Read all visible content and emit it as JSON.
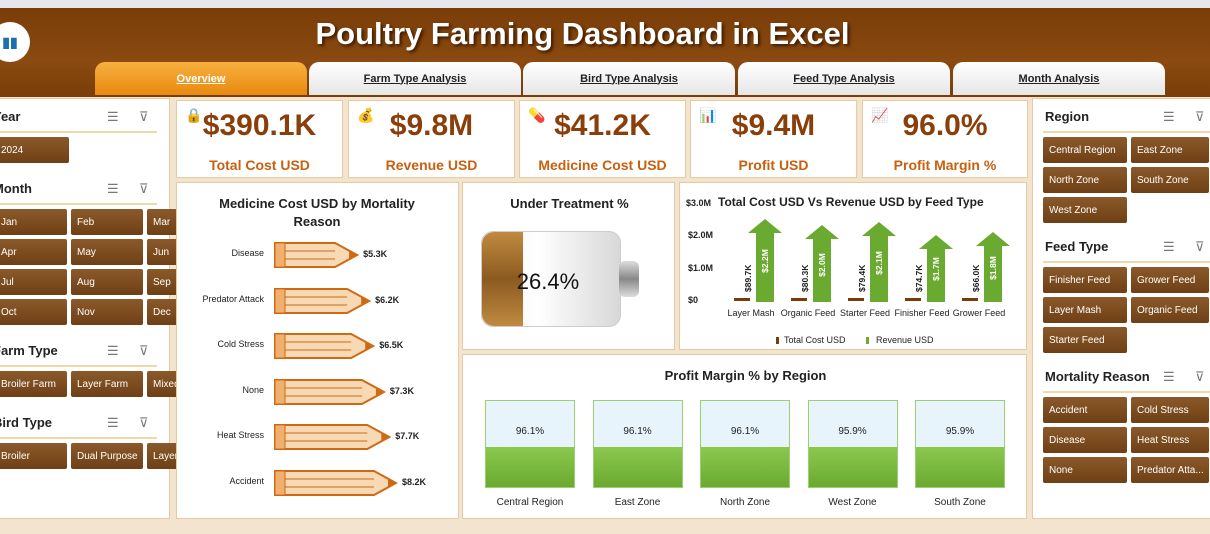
{
  "header": {
    "title": "Poultry Farming Dashboard in Excel"
  },
  "tabs": [
    "Overview",
    "Farm Type Analysis",
    "Bird Type Analysis",
    "Feed Type Analysis",
    "Month Analysis"
  ],
  "left_slicers": [
    {
      "title": "Year",
      "items": [
        "2024"
      ]
    },
    {
      "title": "Month",
      "items": [
        "Jan",
        "Feb",
        "Mar",
        "Apr",
        "May",
        "Jun",
        "Jul",
        "Aug",
        "Sep",
        "Oct",
        "Nov",
        "Dec"
      ]
    },
    {
      "title": "Farm Type",
      "items": [
        "Broiler Farm",
        "Layer Farm",
        "Mixed Poultr..."
      ]
    },
    {
      "title": "Bird Type",
      "items": [
        "Broiler",
        "Dual Purpose",
        "Layer"
      ]
    }
  ],
  "right_slicers": [
    {
      "title": "Region",
      "items": [
        "Central Region",
        "East Zone",
        "North Zone",
        "South Zone",
        "West Zone"
      ]
    },
    {
      "title": "Feed Type",
      "items": [
        "Finisher Feed",
        "Grower Feed",
        "Layer Mash",
        "Organic Feed",
        "Starter Feed"
      ]
    },
    {
      "title": "Mortality Reason",
      "items": [
        "Accident",
        "Cold Stress",
        "Disease",
        "Heat Stress",
        "None",
        "Predator Atta..."
      ]
    }
  ],
  "kpis": [
    {
      "value": "$390.1K",
      "label": "Total Cost USD"
    },
    {
      "value": "$9.8M",
      "label": "Revenue USD"
    },
    {
      "value": "$41.2K",
      "label": "Medicine Cost USD"
    },
    {
      "value": "$9.4M",
      "label": "Profit USD"
    },
    {
      "value": "96.0%",
      "label": "Profit Margin %"
    }
  ],
  "chart_data": [
    {
      "type": "bar",
      "title": "Medicine Cost USD by Mortality Reason",
      "categories": [
        "Disease",
        "Predator Attack",
        "Cold Stress",
        "None",
        "Heat Stress",
        "Accident"
      ],
      "values": [
        5.3,
        6.2,
        6.5,
        7.3,
        7.7,
        8.2
      ],
      "labels": [
        "$5.3K",
        "$6.2K",
        "$6.5K",
        "$7.3K",
        "$7.7K",
        "$8.2K"
      ],
      "unit": "K USD"
    },
    {
      "type": "gauge",
      "title": "Under Treatment %",
      "value": 26.4,
      "label": "26.4%"
    },
    {
      "type": "bar",
      "title": "Total Cost USD Vs Revenue USD by Feed Type",
      "categories": [
        "Layer Mash",
        "Organic Feed",
        "Starter Feed",
        "Finisher Feed",
        "Grower Feed"
      ],
      "yticks": [
        "$0",
        "$1.0M",
        "$2.0M",
        "$3.0M"
      ],
      "ylim": [
        0,
        3.0
      ],
      "series": [
        {
          "name": "Total Cost USD",
          "values": [
            0.0897,
            0.0803,
            0.0794,
            0.0747,
            0.066
          ],
          "labels": [
            "$89.7K",
            "$80.3K",
            "$79.4K",
            "$74.7K",
            "$66.0K"
          ],
          "color": "#7a3d08"
        },
        {
          "name": "Revenue USD",
          "values": [
            2.2,
            2.0,
            2.1,
            1.7,
            1.8
          ],
          "labels": [
            "$2.2M",
            "$2.0M",
            "$2.1M",
            "$1.7M",
            "$1.8M"
          ],
          "color": "#6aaa30"
        }
      ]
    },
    {
      "type": "bar",
      "title": "Profit Margin % by Region",
      "categories": [
        "Central Region",
        "East Zone",
        "North Zone",
        "West Zone",
        "South Zone"
      ],
      "values": [
        96.1,
        96.1,
        96.1,
        95.9,
        95.9
      ],
      "labels": [
        "96.1%",
        "96.1%",
        "96.1%",
        "95.9%",
        "95.9%"
      ]
    }
  ]
}
